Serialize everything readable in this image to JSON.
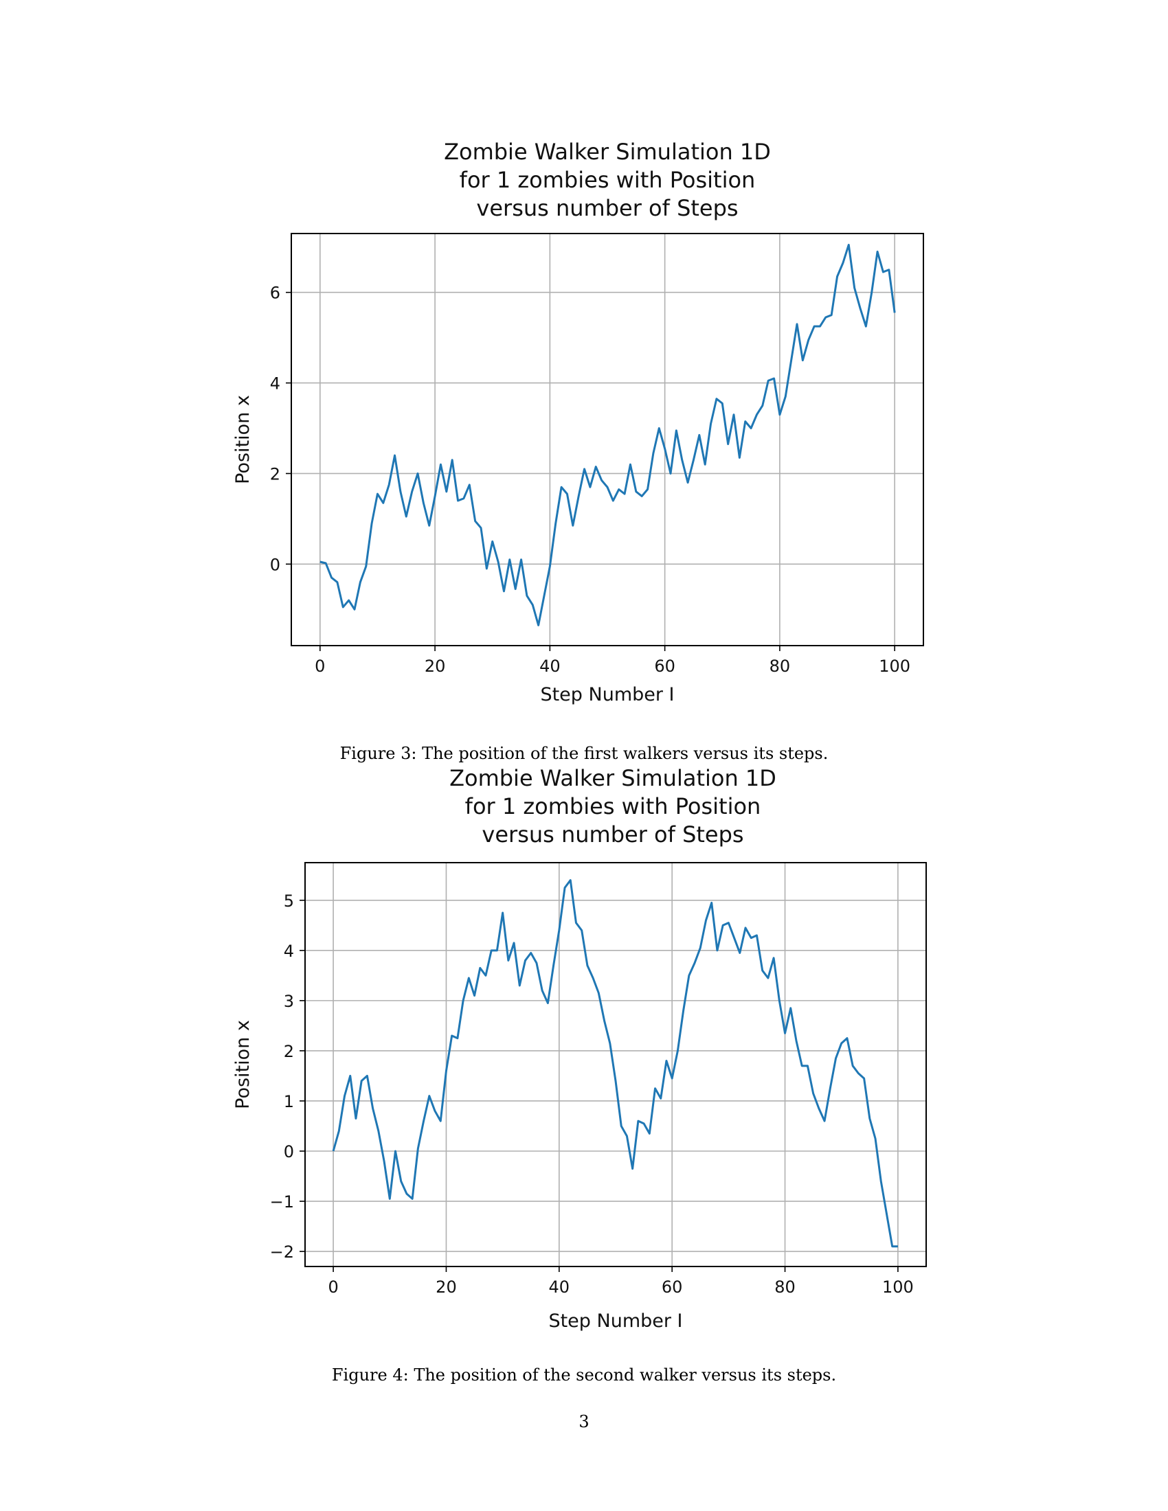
{
  "figures": [
    {
      "caption": "Figure 3: The position of the first walkers versus its steps.",
      "chart_data": {
        "type": "line",
        "title_lines": [
          "Zombie Walker Simulation 1D",
          "for 1 zombies with Position",
          "versus number of Steps"
        ],
        "xlabel": "Step Number I",
        "ylabel": "Position x",
        "xlim": [
          -5,
          105
        ],
        "ylim": [
          -1.8,
          7.3
        ],
        "xticks": [
          0,
          20,
          40,
          60,
          80,
          100
        ],
        "yticks": [
          0,
          2,
          4,
          6
        ],
        "xtick_labels": [
          "0",
          "20",
          "40",
          "60",
          "80",
          "100"
        ],
        "ytick_labels": [
          "0",
          "2",
          "4",
          "6"
        ],
        "grid": true,
        "color": "#1f77b4",
        "x": [
          0,
          1,
          2,
          3,
          4,
          5,
          6,
          7,
          8,
          9,
          10,
          11,
          12,
          13,
          14,
          15,
          16,
          17,
          18,
          19,
          20,
          21,
          22,
          23,
          24,
          25,
          26,
          27,
          28,
          29,
          30,
          31,
          32,
          33,
          34,
          35,
          36,
          37,
          38,
          39,
          40,
          41,
          42,
          43,
          44,
          45,
          46,
          47,
          48,
          49,
          50,
          51,
          52,
          53,
          54,
          55,
          56,
          57,
          58,
          59,
          60,
          61,
          62,
          63,
          64,
          65,
          66,
          67,
          68,
          69,
          70,
          71,
          72,
          73,
          74,
          75,
          76,
          77,
          78,
          79,
          80,
          81,
          82,
          83,
          84,
          85,
          86,
          87,
          88,
          89,
          90,
          91,
          92,
          93,
          94,
          95,
          96,
          97,
          98,
          99,
          100
        ],
        "y": [
          0.05,
          0.02,
          -0.3,
          -0.4,
          -0.95,
          -0.8,
          -1.0,
          -0.4,
          -0.05,
          0.9,
          1.55,
          1.35,
          1.75,
          2.4,
          1.6,
          1.05,
          1.6,
          2.0,
          1.35,
          0.85,
          1.5,
          2.2,
          1.6,
          2.3,
          1.4,
          1.45,
          1.75,
          0.95,
          0.8,
          -0.1,
          0.5,
          0.05,
          -0.6,
          0.1,
          -0.55,
          0.1,
          -0.7,
          -0.9,
          -1.35,
          -0.7,
          -0.05,
          0.9,
          1.7,
          1.55,
          0.85,
          1.5,
          2.1,
          1.7,
          2.15,
          1.85,
          1.7,
          1.4,
          1.65,
          1.55,
          2.2,
          1.6,
          1.5,
          1.65,
          2.45,
          3.0,
          2.55,
          2.0,
          2.95,
          2.3,
          1.8,
          2.3,
          2.85,
          2.2,
          3.1,
          3.65,
          3.55,
          2.65,
          3.3,
          2.35,
          3.15,
          3.0,
          3.3,
          3.5,
          4.05,
          4.1,
          3.3,
          3.7,
          4.5,
          5.3,
          4.5,
          4.95,
          5.25,
          5.25,
          5.45,
          5.5,
          6.35,
          6.65,
          7.05,
          6.1,
          5.65,
          5.25,
          6.0,
          6.9,
          6.45,
          6.5,
          5.55
        ]
      }
    },
    {
      "caption": "Figure 4: The position of the second walker versus its steps.",
      "chart_data": {
        "type": "line",
        "title_lines": [
          "Zombie Walker Simulation 1D",
          "for 1 zombies with Position",
          "versus number of Steps"
        ],
        "xlabel": "Step Number I",
        "ylabel": "Position x",
        "xlim": [
          -5,
          105
        ],
        "ylim": [
          -2.3,
          5.75
        ],
        "xticks": [
          0,
          20,
          40,
          60,
          80,
          100
        ],
        "yticks": [
          -2,
          -1,
          0,
          1,
          2,
          3,
          4,
          5
        ],
        "xtick_labels": [
          "0",
          "20",
          "40",
          "60",
          "80",
          "100"
        ],
        "ytick_labels": [
          "−2",
          "−1",
          "0",
          "1",
          "2",
          "3",
          "4",
          "5"
        ],
        "grid": true,
        "color": "#1f77b4",
        "x": [
          0,
          1,
          2,
          3,
          4,
          5,
          6,
          7,
          8,
          9,
          10,
          11,
          12,
          13,
          14,
          15,
          16,
          17,
          18,
          19,
          20,
          21,
          22,
          23,
          24,
          25,
          26,
          27,
          28,
          29,
          30,
          31,
          32,
          33,
          34,
          35,
          36,
          37,
          38,
          39,
          40,
          41,
          42,
          43,
          44,
          45,
          46,
          47,
          48,
          49,
          50,
          51,
          52,
          53,
          54,
          55,
          56,
          57,
          58,
          59,
          60,
          61,
          62,
          63,
          64,
          65,
          66,
          67,
          68,
          69,
          70,
          71,
          72,
          73,
          74,
          75,
          76,
          77,
          78,
          79,
          80,
          81,
          82,
          83,
          84,
          85,
          86,
          87,
          88,
          89,
          90,
          91,
          92,
          93,
          94,
          95,
          96,
          97,
          98,
          99,
          100
        ],
        "y": [
          0.0,
          0.4,
          1.1,
          1.5,
          0.65,
          1.4,
          1.5,
          0.85,
          0.4,
          -0.2,
          -0.95,
          0.0,
          -0.6,
          -0.85,
          -0.95,
          0.05,
          0.6,
          1.1,
          0.8,
          0.6,
          1.6,
          2.3,
          2.25,
          3.0,
          3.45,
          3.1,
          3.65,
          3.5,
          4.0,
          4.0,
          4.75,
          3.8,
          4.15,
          3.3,
          3.8,
          3.95,
          3.75,
          3.2,
          2.95,
          3.7,
          4.4,
          5.25,
          5.4,
          4.55,
          4.4,
          3.7,
          3.45,
          3.15,
          2.6,
          2.15,
          1.4,
          0.5,
          0.3,
          -0.35,
          0.6,
          0.55,
          0.35,
          1.25,
          1.05,
          1.8,
          1.45,
          2.0,
          2.8,
          3.5,
          3.75,
          4.05,
          4.6,
          4.95,
          4.0,
          4.5,
          4.55,
          4.25,
          3.95,
          4.45,
          4.25,
          4.3,
          3.6,
          3.45,
          3.85,
          3.0,
          2.35,
          2.85,
          2.2,
          1.7,
          1.7,
          1.15,
          0.85,
          0.6,
          1.25,
          1.85,
          2.15,
          2.25,
          1.7,
          1.55,
          1.45,
          0.65,
          0.25,
          -0.6,
          -1.25,
          -1.9,
          -1.9
        ]
      }
    }
  ],
  "page_number": "3"
}
